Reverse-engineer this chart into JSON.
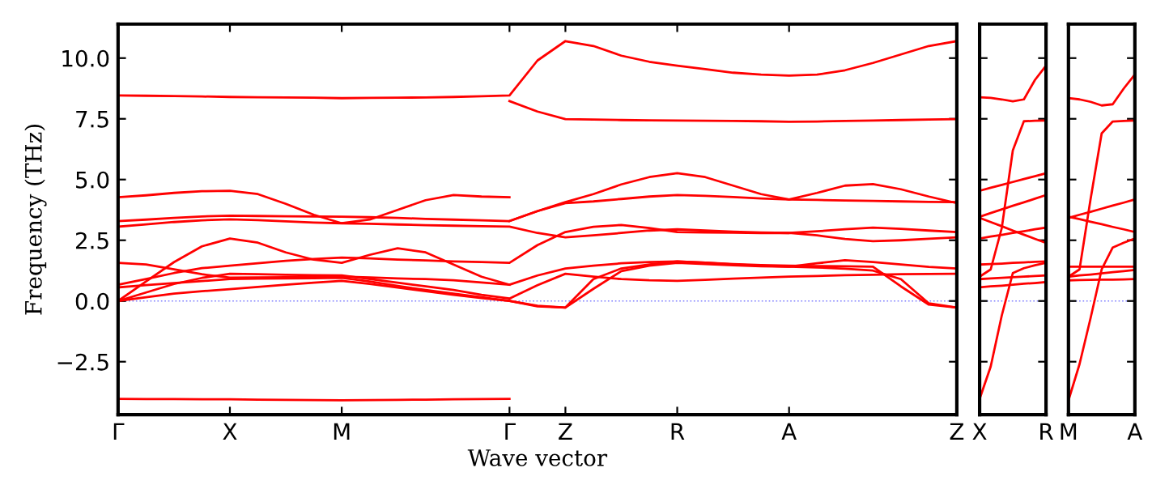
{
  "chart_data": [
    {
      "type": "line",
      "xlabel": "Wave vector",
      "ylabel": "Frequency (THz)",
      "ylim": [
        -4.68,
        11.4
      ],
      "categories": [
        "Γ",
        null,
        null,
        null,
        "X",
        null,
        null,
        null,
        "M",
        null,
        null,
        null,
        null,
        null,
        "Γ",
        null,
        "Z",
        null,
        null,
        null,
        "R",
        null,
        null,
        null,
        "A",
        null,
        null,
        null,
        null,
        null,
        "Z"
      ],
      "yticks": [
        {
          "value": -2.5,
          "label": "−2.5"
        },
        {
          "value": 0,
          "label": "0.0"
        },
        {
          "value": 2.5,
          "label": "2.5"
        },
        {
          "value": 5,
          "label": "5.0"
        },
        {
          "value": 7.5,
          "label": "7.5"
        },
        {
          "value": 10,
          "label": "10.0"
        }
      ],
      "grid": false,
      "line_style": "solid",
      "marker": "none",
      "ref_lines": [
        {
          "axis": "y",
          "value": 0,
          "color": "#7f7fff",
          "line_style": "dotted"
        }
      ],
      "series": [
        {
          "color": "#ff0000",
          "values": [
            8.46,
            8.45,
            8.44,
            8.42,
            8.4,
            8.39,
            8.38,
            8.37,
            8.35,
            8.36,
            8.37,
            8.38,
            8.4,
            8.43,
            8.46,
            9.9,
            10.7,
            10.5,
            10.1,
            9.85,
            9.69,
            9.55,
            9.4,
            9.32,
            9.28,
            9.32,
            9.5,
            9.8,
            10.15,
            10.5,
            10.7
          ]
        },
        {
          "color": "#ff0000",
          "values": [
            4.27,
            4.35,
            4.45,
            4.52,
            4.54,
            4.4,
            4.0,
            3.55,
            3.2,
            3.35,
            3.75,
            4.15,
            4.36,
            4.3,
            4.27,
            null,
            null,
            null,
            null,
            null,
            null,
            null,
            null,
            null,
            null,
            null,
            null,
            null,
            null,
            null,
            null
          ]
        },
        {
          "color": "#ff0000",
          "values": [
            3.29,
            3.35,
            3.42,
            3.48,
            3.51,
            3.5,
            3.49,
            3.48,
            3.47,
            3.45,
            3.42,
            3.38,
            3.35,
            3.32,
            3.29,
            3.7,
            4.07,
            4.4,
            4.8,
            5.1,
            5.26,
            5.1,
            4.75,
            4.4,
            4.18,
            4.45,
            4.75,
            4.81,
            4.6,
            4.3,
            4.03
          ]
        },
        {
          "color": "#ff0000",
          "values": [
            3.06,
            3.15,
            3.25,
            3.32,
            3.36,
            3.33,
            3.28,
            3.23,
            3.2,
            3.18,
            3.15,
            3.12,
            3.1,
            3.08,
            3.06,
            2.8,
            2.62,
            2.7,
            2.8,
            2.9,
            2.95,
            2.9,
            2.85,
            2.82,
            2.8,
            2.87,
            2.95,
            3.02,
            2.97,
            2.9,
            2.84
          ]
        },
        {
          "color": "#ff0000",
          "values": [
            0,
            0.8,
            1.6,
            2.25,
            2.57,
            2.4,
            2.0,
            1.7,
            1.57,
            1.9,
            2.17,
            2.0,
            1.5,
            1.0,
            0.67,
            null,
            null,
            null,
            null,
            null,
            null,
            null,
            null,
            null,
            null,
            null,
            null,
            null,
            null,
            null,
            null
          ]
        },
        {
          "color": "#ff0000",
          "values": [
            0.67,
            0.9,
            1.15,
            1.35,
            1.45,
            1.55,
            1.65,
            1.73,
            1.79,
            1.75,
            1.7,
            1.67,
            1.63,
            1.6,
            1.57,
            2.3,
            2.84,
            3.05,
            3.13,
            3.0,
            2.84,
            2.82,
            2.81,
            2.8,
            2.8,
            2.7,
            2.55,
            2.46,
            2.5,
            2.56,
            2.62
          ]
        },
        {
          "color": "#ff0000",
          "values": [
            1.57,
            1.5,
            1.3,
            1.1,
            0.96,
            0.97,
            0.98,
            0.99,
            1.0,
            0.97,
            0.93,
            0.9,
            0.85,
            0.76,
            0.67,
            1.05,
            1.34,
            1.45,
            1.55,
            1.6,
            1.63,
            1.58,
            1.5,
            1.45,
            1.41,
            1.55,
            1.68,
            1.6,
            1.5,
            1.4,
            1.34
          ]
        },
        {
          "color": "#ff0000",
          "values": [
            0,
            0.35,
            0.7,
            0.95,
            1.12,
            1.1,
            1.08,
            1.06,
            1.05,
            0.9,
            0.75,
            0.6,
            0.45,
            0.25,
            0.1,
            0.65,
            1.12,
            1.0,
            0.9,
            0.85,
            0.83,
            0.87,
            0.92,
            0.96,
            1.0,
            1.03,
            1.06,
            1.08,
            1.1,
            1.11,
            1.12
          ]
        },
        {
          "color": "#ff0000",
          "values": [
            0,
            0.15,
            0.3,
            0.4,
            0.49,
            0.58,
            0.67,
            0.75,
            0.83,
            0.7,
            0.55,
            0.4,
            0.25,
            0.12,
            0,
            -0.22,
            -0.27,
            0.5,
            1.23,
            1.45,
            1.57,
            1.52,
            1.47,
            1.43,
            1.41,
            1.38,
            1.33,
            1.25,
            0.9,
            -0.1,
            -0.27
          ]
        },
        {
          "color": "#ff0000",
          "values": [
            0.56,
            0.65,
            0.74,
            0.82,
            0.9,
            0.92,
            0.93,
            0.94,
            0.95,
            0.8,
            0.62,
            0.45,
            0.3,
            0.15,
            0,
            -0.2,
            -0.27,
            0.9,
            1.34,
            1.5,
            1.63,
            1.58,
            1.52,
            1.48,
            1.45,
            1.44,
            1.43,
            1.41,
            0.6,
            -0.15,
            -0.27
          ]
        },
        {
          "color": "#ff0000",
          "values": [
            -4.03,
            -4.04,
            -4.04,
            -4.05,
            -4.05,
            -4.06,
            -4.07,
            -4.08,
            -4.09,
            -4.08,
            -4.07,
            -4.06,
            -4.05,
            -4.04,
            -4.03,
            null,
            null,
            null,
            null,
            null,
            null,
            null,
            null,
            null,
            null,
            null,
            null,
            null,
            null,
            null,
            null
          ]
        },
        {
          "color": "#ff0000",
          "values": [
            null,
            null,
            null,
            null,
            null,
            null,
            null,
            null,
            null,
            null,
            null,
            null,
            null,
            null,
            8.23,
            7.8,
            7.49,
            7.47,
            7.45,
            7.44,
            7.43,
            7.42,
            7.41,
            7.4,
            7.38,
            7.39,
            7.41,
            7.43,
            7.45,
            7.47,
            7.49
          ]
        },
        {
          "color": "#ff0000",
          "values": [
            null,
            null,
            null,
            null,
            null,
            null,
            null,
            null,
            null,
            null,
            null,
            null,
            null,
            null,
            3.29,
            3.7,
            4.03,
            4.1,
            4.2,
            4.3,
            4.36,
            4.33,
            4.28,
            4.22,
            4.18,
            4.16,
            4.14,
            4.12,
            4.1,
            4.08,
            4.07
          ]
        }
      ]
    },
    {
      "type": "line",
      "ylim": [
        -4.68,
        11.4
      ],
      "tick_labels": "x",
      "categories": [
        "X",
        null,
        null,
        null,
        null,
        null,
        "R"
      ],
      "yticks": [
        -2.5,
        0,
        2.5,
        5,
        7.5,
        10
      ],
      "grid": false,
      "line_style": "solid",
      "marker": "none",
      "ref_lines": [
        {
          "axis": "y",
          "value": 0,
          "color": "#7f7fff",
          "line_style": "dotted"
        }
      ],
      "series": [
        {
          "color": "#ff0000",
          "values": [
            8.39,
            8.36,
            8.3,
            8.22,
            8.3,
            9.1,
            9.69
          ]
        },
        {
          "color": "#ff0000",
          "values": [
            -4.03,
            -2.7,
            -0.6,
            1.15,
            1.35,
            1.47,
            1.57
          ]
        },
        {
          "color": "#ff0000",
          "values": [
            1.0,
            1.3,
            3.0,
            6.2,
            7.4,
            7.42,
            7.43
          ]
        },
        {
          "color": "#ff0000",
          "values": [
            4.54,
            4.66,
            4.78,
            4.9,
            5.02,
            5.14,
            5.26
          ]
        },
        {
          "color": "#ff0000",
          "values": [
            3.47,
            3.62,
            3.77,
            3.92,
            4.06,
            4.21,
            4.36
          ]
        },
        {
          "color": "#ff0000",
          "values": [
            3.42,
            3.25,
            3.08,
            2.9,
            2.73,
            2.56,
            2.39
          ]
        },
        {
          "color": "#ff0000",
          "values": [
            2.57,
            2.65,
            2.72,
            2.8,
            2.87,
            2.95,
            3.02
          ]
        },
        {
          "color": "#ff0000",
          "values": [
            1.5,
            1.52,
            1.54,
            1.57,
            1.59,
            1.61,
            1.63
          ]
        },
        {
          "color": "#ff0000",
          "values": [
            0.9,
            0.93,
            0.95,
            0.98,
            1.0,
            1.03,
            1.05
          ]
        },
        {
          "color": "#ff0000",
          "values": [
            0.56,
            0.6,
            0.63,
            0.67,
            0.71,
            0.74,
            0.78
          ]
        }
      ]
    },
    {
      "type": "line",
      "ylim": [
        -4.68,
        11.4
      ],
      "tick_labels": "x",
      "categories": [
        "M",
        null,
        null,
        null,
        null,
        null,
        "A"
      ],
      "yticks": [
        -2.5,
        0,
        2.5,
        5,
        7.5,
        10
      ],
      "grid": false,
      "line_style": "solid",
      "marker": "none",
      "ref_lines": [
        {
          "axis": "y",
          "value": 0,
          "color": "#7f7fff",
          "line_style": "dotted"
        }
      ],
      "series": [
        {
          "color": "#ff0000",
          "values": [
            8.35,
            8.3,
            8.2,
            8.05,
            8.1,
            8.75,
            9.33
          ]
        },
        {
          "color": "#ff0000",
          "values": [
            -4.09,
            -2.6,
            -0.7,
            1.3,
            2.2,
            2.4,
            2.57
          ]
        },
        {
          "color": "#ff0000",
          "values": [
            1.0,
            1.3,
            4.2,
            6.9,
            7.39,
            7.41,
            7.43
          ]
        },
        {
          "color": "#ff0000",
          "values": [
            3.42,
            3.55,
            3.67,
            3.8,
            3.93,
            4.05,
            4.18
          ]
        },
        {
          "color": "#ff0000",
          "values": [
            3.47,
            3.37,
            3.26,
            3.16,
            3.05,
            2.95,
            2.84
          ]
        },
        {
          "color": "#ff0000",
          "values": [
            1.41,
            1.41,
            1.41,
            1.41,
            1.41,
            1.41,
            1.41
          ]
        },
        {
          "color": "#ff0000",
          "values": [
            1.0,
            1.05,
            1.09,
            1.14,
            1.19,
            1.23,
            1.28
          ]
        },
        {
          "color": "#ff0000",
          "values": [
            0.85,
            0.86,
            0.87,
            0.88,
            0.88,
            0.89,
            0.9
          ]
        }
      ]
    }
  ]
}
